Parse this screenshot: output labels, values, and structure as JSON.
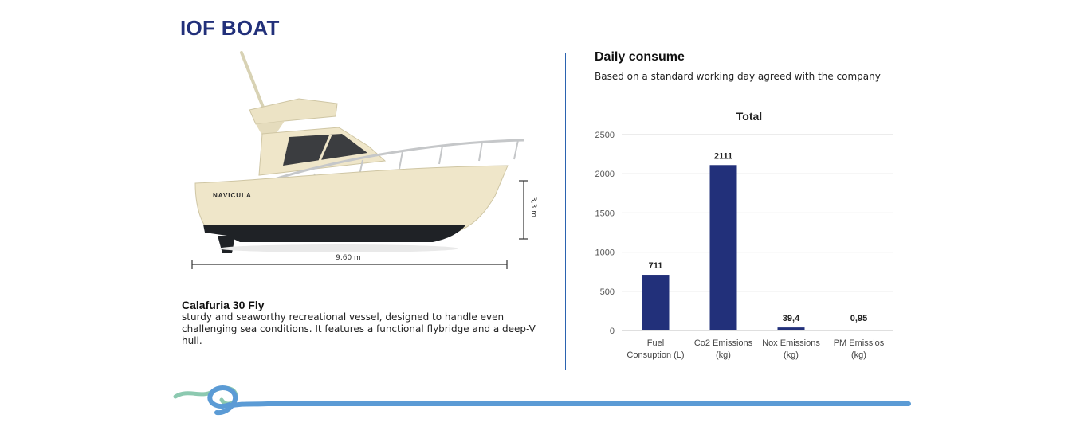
{
  "header": {
    "title": "IOF BOAT"
  },
  "boat": {
    "hull_label": "NAVICULA",
    "height_label": "3,3 m",
    "length_label": "9,60 m",
    "name": "Calafuria 30 Fly",
    "description": "sturdy and seaworthy recreational vessel, designed to handle even challenging sea conditions. It features a functional flybridge and a deep-V hull."
  },
  "consume": {
    "title": "Daily consume",
    "subtitle": "Based on a standard working day agreed with the company"
  },
  "colors": {
    "accent": "#22307a",
    "bar": "#22307a",
    "divider": "#2b63b0",
    "wave_blue": "#5b9bd5",
    "wave_green": "#8cc9b0"
  },
  "chart_data": {
    "type": "bar",
    "title": "Total",
    "categories": [
      [
        "Fuel",
        "Consuption (L)"
      ],
      [
        "Co2 Emissions",
        "(kg)"
      ],
      [
        "Nox Emissions",
        "(kg)"
      ],
      [
        "PM Emissios",
        "(kg)"
      ]
    ],
    "values": [
      711,
      2111,
      39.4,
      0.95
    ],
    "value_labels": [
      "711",
      "2111",
      "39,4",
      "0,95"
    ],
    "ylim": [
      0,
      2500
    ],
    "yticks": [
      0,
      500,
      1000,
      1500,
      2000,
      2500
    ],
    "grid": true,
    "xlabel": "",
    "ylabel": ""
  }
}
